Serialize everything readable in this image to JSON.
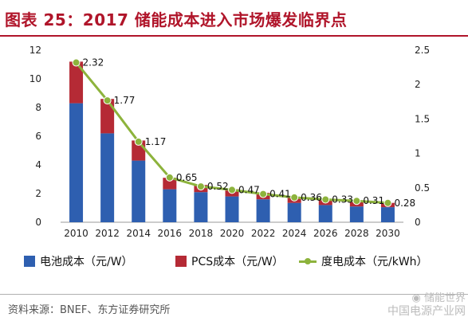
{
  "header": {
    "title": "图表 25：2017 储能成本进入市场爆发临界点"
  },
  "chart_data": {
    "type": "bar",
    "title": "图表 25：2017 储能成本进入市场爆发临界点",
    "categories": [
      "2010",
      "2012",
      "2014",
      "2016",
      "2018",
      "2020",
      "2022",
      "2024",
      "2026",
      "2028",
      "2030"
    ],
    "series": [
      {
        "name": "电池成本（元/W）",
        "type": "bar",
        "stack": "cost",
        "axis": "left",
        "color": "#2e5fb0",
        "values": [
          8.3,
          6.2,
          4.3,
          2.3,
          2.1,
          1.8,
          1.6,
          1.35,
          1.2,
          1.1,
          1.05
        ]
      },
      {
        "name": "PCS成本（元/W）",
        "type": "bar",
        "stack": "cost",
        "axis": "left",
        "color": "#b52a35",
        "values": [
          2.9,
          2.4,
          1.4,
          0.8,
          0.5,
          0.5,
          0.45,
          0.4,
          0.35,
          0.3,
          0.3
        ]
      },
      {
        "name": "度电成本（元/kWh）",
        "type": "line",
        "axis": "right",
        "color": "#8db33c",
        "values": [
          2.32,
          1.77,
          1.17,
          0.65,
          0.52,
          0.47,
          0.41,
          0.36,
          0.33,
          0.31,
          0.28
        ],
        "labels": [
          "2.32",
          "1.77",
          "1.17",
          "0.65",
          "0.52",
          "0.47",
          "0.41",
          "0.36",
          "0.33",
          "0.31",
          "0.28"
        ]
      }
    ],
    "y_left": {
      "min": 0,
      "max": 12,
      "ticks": [
        "0",
        "2",
        "4",
        "6",
        "8",
        "10",
        "12"
      ]
    },
    "y_right": {
      "min": 0,
      "max": 2.5,
      "ticks": [
        "0",
        "0.5",
        "1",
        "1.5",
        "2",
        "2.5"
      ]
    },
    "grid": false,
    "legend": "bottom"
  },
  "legend": {
    "items": [
      {
        "label": "电池成本（元/W）",
        "color": "#2e5fb0",
        "kind": "bar"
      },
      {
        "label": "PCS成本（元/W）",
        "color": "#b52a35",
        "kind": "bar"
      },
      {
        "label": "度电成本（元/kWh）",
        "color": "#8db33c",
        "kind": "line"
      }
    ]
  },
  "footer": {
    "source": "资料来源：BNEF、东方证券研究所"
  },
  "watermark": {
    "line1": "储能世界",
    "line2": "中国电源产业网",
    "icon": "wechat-icon"
  }
}
